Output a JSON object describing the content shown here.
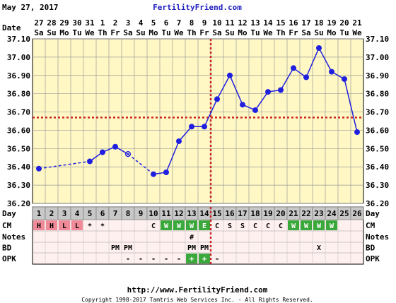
{
  "header": {
    "date": "May 27, 2017",
    "site": "FertilityFriend.com"
  },
  "footer": {
    "url": "http://www.FertilityFriend.com",
    "copyright": "Copyright 1998-2017 Tamtris Web Services Inc. - All Rights Reserved."
  },
  "row_labels": {
    "date": "Date",
    "day": "Day",
    "cm": "CM",
    "notes": "Notes",
    "bd": "BD",
    "opk": "OPK"
  },
  "colors": {
    "plot_bg": "#fff8c4",
    "grid": "#9a9a9a",
    "line": "#1f1fe0",
    "coverline": "#cc2222",
    "title_blue": "#2020c0",
    "day_cell": "#c8c8c8",
    "cm_red": "#f08a98",
    "cm_green": "#3aa83a",
    "opk_green": "#3aa83a",
    "table_bg": "#fff0f0"
  },
  "chart_data": {
    "type": "line",
    "title": "",
    "ylim": [
      36.2,
      37.1
    ],
    "y_ticks": [
      "36.20",
      "36.30",
      "36.40",
      "36.50",
      "36.60",
      "36.70",
      "36.80",
      "36.90",
      "37.00",
      "37.10"
    ],
    "ovulation_day": 14,
    "coverline": 36.67,
    "days": [
      1,
      2,
      3,
      4,
      5,
      6,
      7,
      8,
      9,
      10,
      11,
      12,
      13,
      14,
      15,
      16,
      17,
      18,
      19,
      20,
      21,
      22,
      23,
      24,
      25,
      26
    ],
    "date_nums": [
      "27",
      "28",
      "29",
      "30",
      "31",
      "1",
      "2",
      "3",
      "4",
      "5",
      "6",
      "7",
      "8",
      "9",
      "10",
      "11",
      "12",
      "13",
      "14",
      "15",
      "16",
      "17",
      "18",
      "19",
      "20",
      "21"
    ],
    "weekdays": [
      "Sa",
      "Su",
      "Mo",
      "Tu",
      "We",
      "Th",
      "Fr",
      "Sa",
      "Su",
      "Mo",
      "Tu",
      "We",
      "Th",
      "Fr",
      "Sa",
      "Su",
      "Mo",
      "Tu",
      "We",
      "Th",
      "Fr",
      "Sa",
      "Su",
      "Mo",
      "Tu",
      "We"
    ],
    "temps": [
      36.39,
      null,
      null,
      null,
      36.43,
      36.48,
      36.51,
      36.47,
      null,
      36.36,
      36.37,
      36.54,
      36.62,
      36.62,
      36.77,
      36.9,
      36.74,
      36.71,
      36.81,
      36.82,
      36.94,
      36.89,
      37.05,
      36.92,
      36.88,
      36.59
    ],
    "open_points": [
      8
    ],
    "dashed_segments": [
      [
        1,
        5
      ],
      [
        8,
        10
      ]
    ],
    "cm": [
      "H",
      "H",
      "L",
      "L",
      "*",
      "*",
      "",
      "",
      "",
      "C",
      "W",
      "W",
      "W",
      "E",
      "C",
      "S",
      "S",
      "C",
      "C",
      "C",
      "W",
      "W",
      "W",
      "W",
      "",
      ""
    ],
    "notes": [
      "",
      "",
      "",
      "",
      "",
      "",
      "",
      "",
      "",
      "",
      "",
      "",
      "#",
      "",
      "",
      "",
      "",
      "",
      "",
      "",
      "",
      "",
      "",
      "",
      "",
      ""
    ],
    "bd": [
      "",
      "",
      "",
      "",
      "",
      "",
      "PM",
      "PM",
      "",
      "",
      "",
      "",
      "PM",
      "PM",
      "",
      "",
      "",
      "",
      "",
      "",
      "",
      "",
      "X",
      "",
      "",
      ""
    ],
    "opk": [
      "",
      "",
      "",
      "",
      "",
      "",
      "",
      "-",
      "-",
      "-",
      "-",
      "-",
      "+",
      "+",
      "-",
      "",
      "",
      "",
      "",
      "",
      "",
      "",
      "",
      "",
      "",
      ""
    ]
  }
}
